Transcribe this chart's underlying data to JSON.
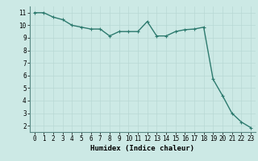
{
  "x": [
    0,
    1,
    2,
    3,
    4,
    5,
    6,
    7,
    8,
    9,
    10,
    11,
    12,
    13,
    14,
    15,
    16,
    17,
    18,
    19,
    20,
    21,
    22,
    23
  ],
  "y": [
    11.0,
    11.0,
    10.65,
    10.45,
    10.0,
    9.85,
    9.7,
    9.7,
    9.15,
    9.5,
    9.5,
    9.5,
    10.3,
    9.15,
    9.15,
    9.5,
    9.65,
    9.7,
    9.85,
    5.7,
    4.4,
    3.0,
    2.3,
    1.85
  ],
  "line_color": "#2d7a6e",
  "marker": "+",
  "marker_size": 3,
  "linewidth": 1.0,
  "xlabel": "Humidex (Indice chaleur)",
  "xlim": [
    -0.5,
    23.5
  ],
  "ylim": [
    1.5,
    11.5
  ],
  "yticks": [
    2,
    3,
    4,
    5,
    6,
    7,
    8,
    9,
    10,
    11
  ],
  "xticks": [
    0,
    1,
    2,
    3,
    4,
    5,
    6,
    7,
    8,
    9,
    10,
    11,
    12,
    13,
    14,
    15,
    16,
    17,
    18,
    19,
    20,
    21,
    22,
    23
  ],
  "bg_color": "#cce9e5",
  "grid_color": "#b8d8d4",
  "tick_fontsize": 5.5,
  "xlabel_fontsize": 6.5
}
